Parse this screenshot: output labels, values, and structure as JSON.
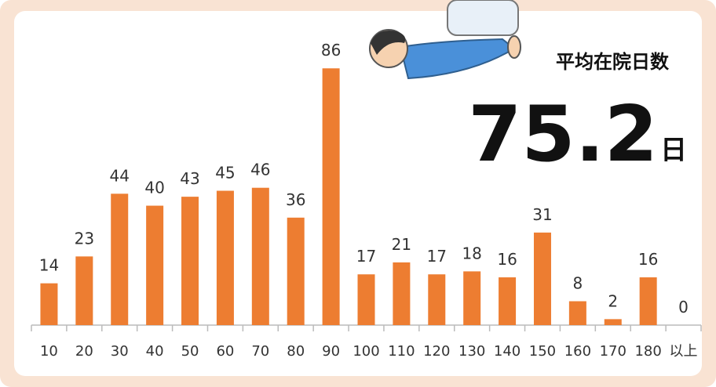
{
  "chart_data": {
    "type": "bar",
    "annotation_title": "平均在院日数",
    "annotation_value": 75.2,
    "annotation_unit": "日",
    "categories": [
      "10",
      "20",
      "30",
      "40",
      "50",
      "60",
      "70",
      "80",
      "90",
      "100",
      "110",
      "120",
      "130",
      "140",
      "150",
      "160",
      "170",
      "180",
      "以上"
    ],
    "values": [
      14,
      23,
      44,
      40,
      43,
      45,
      46,
      36,
      86,
      17,
      21,
      17,
      18,
      16,
      31,
      8,
      2,
      16,
      0
    ],
    "color": "#ed7d31",
    "ylim": [
      0,
      90
    ]
  }
}
